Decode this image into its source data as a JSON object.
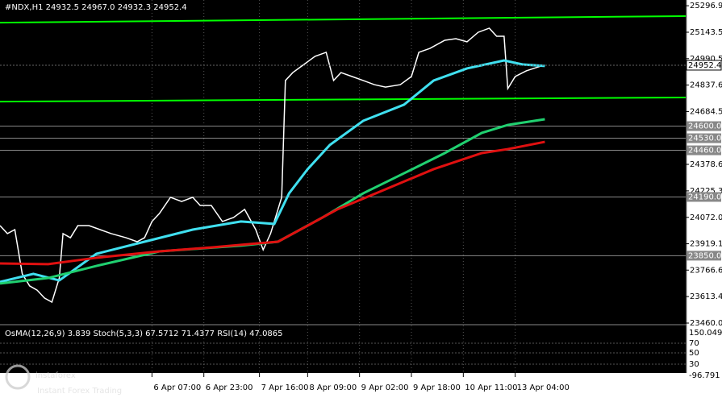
{
  "chart_data": {
    "type": "line",
    "title": "#NDX,H1  24932.5 24967.0 24932.3 24952.4",
    "xlim": [
      0,
      185
    ],
    "ylim": [
      23460,
      25330
    ],
    "xticks": [
      {
        "value": 41,
        "label": "6 Apr 07:00"
      },
      {
        "value": 55,
        "label": "6 Apr 23:00"
      },
      {
        "value": 70,
        "label": "7 Apr 16:00"
      },
      {
        "value": 83,
        "label": "8 Apr 09:00"
      },
      {
        "value": 97,
        "label": "9 Apr 02:00"
      },
      {
        "value": 111,
        "label": "9 Apr 18:00"
      },
      {
        "value": 125,
        "label": "10 Apr 11:00"
      },
      {
        "value": 139,
        "label": "13 Apr 04:00"
      }
    ],
    "yticks": [
      25296.9,
      25143.5,
      24990.5,
      24837.6,
      24684.5,
      24378.6,
      24225.3,
      {
        "value": 24072,
        "label": "24072.0"
      },
      23919.1,
      23766.6,
      23613.4,
      {
        "value": 23460,
        "label": "23460.0"
      }
    ],
    "last_price": 24952.4,
    "levels": [
      {
        "value": 24600,
        "label": "24600.0"
      },
      {
        "value": 24530,
        "label": "24530.0"
      },
      {
        "value": 24460,
        "label": "24460.0"
      },
      {
        "value": 24190,
        "label": "24190.0"
      },
      {
        "value": 23850,
        "label": "23850.0"
      }
    ],
    "trend_lines": [
      {
        "color": "#00ff00",
        "values": [
          25199,
          25237
        ]
      },
      {
        "color": "#00ff00",
        "values": [
          24742,
          24766
        ]
      }
    ],
    "series": [
      {
        "color": "#ffffff",
        "x": [
          0,
          2,
          4,
          6,
          8,
          10,
          12,
          14,
          16,
          17,
          19,
          21,
          24,
          27,
          30,
          34,
          37,
          39,
          41,
          43,
          46,
          49,
          52,
          54,
          57,
          60,
          63,
          66,
          69,
          71,
          73,
          76,
          77,
          79,
          82,
          85,
          88,
          90,
          92,
          95,
          98,
          101,
          104,
          108,
          111,
          113,
          116,
          120,
          123,
          126,
          129,
          132,
          134,
          136,
          137,
          139,
          142,
          146
        ],
        "values": [
          24024,
          23978,
          24001,
          23745,
          23675,
          23651,
          23605,
          23581,
          23721,
          23978,
          23954,
          24024,
          24024,
          24001,
          23978,
          23954,
          23931,
          23954,
          24048,
          24094,
          24188,
          24164,
          24188,
          24141,
          24141,
          24048,
          24071,
          24118,
          24001,
          23884,
          23978,
          24188,
          24864,
          24910,
          24957,
          25004,
          25027,
          24864,
          24910,
          24887,
          24864,
          24840,
          24826,
          24840,
          24887,
          25027,
          25050,
          25097,
          25106,
          25088,
          25143,
          25167,
          25120,
          25120,
          24817,
          24887,
          24920,
          24948
        ]
      },
      {
        "color": "#40e0f0",
        "x": [
          0,
          9,
          16,
          26,
          39,
          52,
          65,
          74,
          78,
          83,
          89,
          98,
          109,
          117,
          126,
          136,
          141,
          147
        ],
        "values": [
          23698,
          23745,
          23707,
          23861,
          23931,
          24001,
          24048,
          24034,
          24211,
          24351,
          24491,
          24631,
          24724,
          24864,
          24934,
          24980,
          24957,
          24948
        ]
      },
      {
        "color": "#20d070",
        "x": [
          0,
          13,
          26,
          43,
          65,
          75,
          87,
          98,
          109,
          120,
          130,
          137,
          147
        ],
        "values": [
          23689,
          23721,
          23791,
          23875,
          23908,
          23931,
          24071,
          24211,
          24327,
          24444,
          24561,
          24607,
          24640
        ]
      },
      {
        "color": "#e01010",
        "x": [
          0,
          13,
          26,
          43,
          57,
          70,
          75,
          83,
          91,
          104,
          117,
          130,
          137,
          147
        ],
        "values": [
          23805,
          23801,
          23838,
          23875,
          23898,
          23922,
          23931,
          24024,
          24118,
          24234,
          24351,
          24444,
          24467,
          24509
        ]
      }
    ],
    "indicator_label": "OsMA(12,26,9) 3.839  Stoch(5,3,3) 67.5712 71.4377  RSI(14) 47.0865",
    "indicator_axis": [
      "150.049",
      "70",
      "50",
      "30",
      "-96.791"
    ],
    "watermark": {
      "brand": "instaforex",
      "tagline": "Instant Forex Trading"
    }
  }
}
